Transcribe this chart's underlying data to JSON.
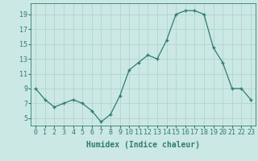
{
  "x": [
    0,
    1,
    2,
    3,
    4,
    5,
    6,
    7,
    8,
    9,
    10,
    11,
    12,
    13,
    14,
    15,
    16,
    17,
    18,
    19,
    20,
    21,
    22,
    23
  ],
  "y": [
    9,
    7.5,
    6.5,
    7,
    7.5,
    7,
    6,
    4.5,
    5.5,
    8,
    11.5,
    12.5,
    13.5,
    13,
    15.5,
    19,
    19.5,
    19.5,
    19,
    14.5,
    12.5,
    9,
    9,
    7.5
  ],
  "xlabel": "Humidex (Indice chaleur)",
  "ylabel": "",
  "xlim": [
    -0.5,
    23.5
  ],
  "ylim": [
    4,
    20.5
  ],
  "yticks": [
    5,
    7,
    9,
    11,
    13,
    15,
    17,
    19
  ],
  "xticks": [
    0,
    1,
    2,
    3,
    4,
    5,
    6,
    7,
    8,
    9,
    10,
    11,
    12,
    13,
    14,
    15,
    16,
    17,
    18,
    19,
    20,
    21,
    22,
    23
  ],
  "line_color": "#2e7d6e",
  "marker_color": "#2e7d6e",
  "bg_color": "#cce8e4",
  "grid_color": "#b0d4ce",
  "font_color": "#2e7d6e",
  "font_name": "monospace",
  "xlabel_fontsize": 7,
  "tick_fontsize": 6
}
